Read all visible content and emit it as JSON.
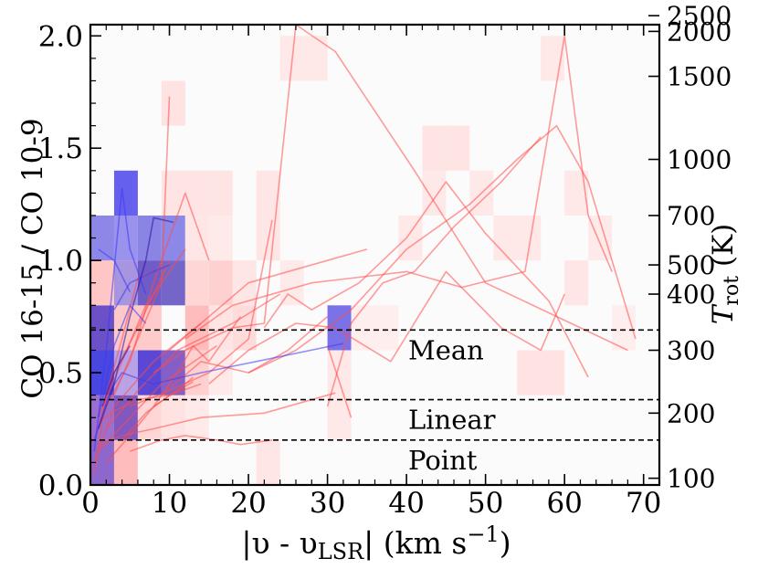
{
  "chart_data": {
    "type": "heatmap",
    "title": "",
    "xlabel": {
      "main": "|υ - υ",
      "sub": "LSR",
      "mid": "| (km s",
      "sup": "−1",
      "end": ")"
    },
    "ylabel": "CO 16-15 / CO 10-9",
    "ylabel_right": {
      "main": "T",
      "sub": "rot",
      "end": " (K)"
    },
    "xlim": [
      0,
      72
    ],
    "ylim": [
      0,
      2.05
    ],
    "x_ticks": [
      0,
      10,
      20,
      30,
      40,
      50,
      60,
      70
    ],
    "y_ticks": [
      0.0,
      0.5,
      1.0,
      1.5,
      2.0
    ],
    "y_tick_labels": [
      "0.0",
      "0.5",
      "1.0",
      "1.5",
      "2.0"
    ],
    "right_ticks": [
      {
        "label": "2500",
        "ratio": 2.09
      },
      {
        "label": "2000",
        "ratio": 2.02
      },
      {
        "label": "1500",
        "ratio": 1.82
      },
      {
        "label": "1000",
        "ratio": 1.45
      },
      {
        "label": "700",
        "ratio": 1.2
      },
      {
        "label": "500",
        "ratio": 0.98
      },
      {
        "label": "400",
        "ratio": 0.85
      },
      {
        "label": "300",
        "ratio": 0.6
      },
      {
        "label": "200",
        "ratio": 0.32
      },
      {
        "label": "100",
        "ratio": 0.03
      }
    ],
    "hlines": [
      {
        "label": "Mean",
        "y": 0.69
      },
      {
        "label": "Linear",
        "y": 0.38
      },
      {
        "label": "Point",
        "y": 0.2
      }
    ],
    "series": [
      {
        "color": "#ff4a4a",
        "lines": [
          [
            [
              0.5,
              0.2
            ],
            [
              3,
              0.5
            ],
            [
              6,
              0.7
            ],
            [
              10,
              1.0
            ]
          ],
          [
            [
              1,
              0.3
            ],
            [
              4,
              0.55
            ],
            [
              7,
              0.8
            ],
            [
              12,
              1.05
            ]
          ],
          [
            [
              0.5,
              0.1
            ],
            [
              3,
              0.35
            ],
            [
              8,
              0.55
            ],
            [
              14,
              0.72
            ]
          ],
          [
            [
              1,
              0.15
            ],
            [
              5,
              0.3
            ],
            [
              9,
              0.45
            ],
            [
              16,
              0.62
            ]
          ],
          [
            [
              2,
              0.25
            ],
            [
              6,
              0.42
            ],
            [
              11,
              0.6
            ],
            [
              18,
              0.72
            ],
            [
              24,
              0.85
            ]
          ],
          [
            [
              1,
              0.18
            ],
            [
              4,
              0.22
            ],
            [
              8,
              0.25
            ],
            [
              14,
              0.3
            ],
            [
              22,
              0.32
            ],
            [
              31,
              0.41
            ]
          ],
          [
            [
              3,
              0.4
            ],
            [
              6,
              0.65
            ],
            [
              9,
              0.9
            ],
            [
              10,
              1.73
            ]
          ],
          [
            [
              2,
              0.35
            ],
            [
              5,
              0.55
            ],
            [
              8,
              0.9
            ],
            [
              12,
              1.3
            ],
            [
              15,
              1.0
            ]
          ],
          [
            [
              5,
              0.35
            ],
            [
              10,
              0.42
            ],
            [
              15,
              0.5
            ],
            [
              20,
              0.65
            ],
            [
              23,
              1.18
            ]
          ],
          [
            [
              8,
              0.5
            ],
            [
              12,
              0.6
            ],
            [
              18,
              0.7
            ],
            [
              22,
              0.72
            ],
            [
              26,
              2.05
            ],
            [
              31,
              1.93
            ],
            [
              41,
              1.4
            ],
            [
              50,
              0.9
            ],
            [
              62,
              0.7
            ],
            [
              68,
              0.6
            ]
          ],
          [
            [
              9,
              0.4
            ],
            [
              14,
              0.55
            ],
            [
              20,
              0.5
            ],
            [
              25,
              0.6
            ],
            [
              30,
              0.75
            ]
          ],
          [
            [
              10,
              0.6
            ],
            [
              15,
              0.75
            ],
            [
              20,
              0.9
            ],
            [
              35,
              1.05
            ]
          ],
          [
            [
              12,
              0.65
            ],
            [
              18,
              0.8
            ],
            [
              28,
              0.9
            ],
            [
              40,
              0.95
            ],
            [
              47,
              0.88
            ],
            [
              55,
              0.95
            ],
            [
              60,
              2.0
            ],
            [
              63,
              1.2
            ],
            [
              66,
              0.95
            ]
          ],
          [
            [
              15,
              0.45
            ],
            [
              20,
              0.6
            ],
            [
              26,
              0.72
            ],
            [
              31,
              0.7
            ],
            [
              38,
              0.55
            ],
            [
              45,
              0.95
            ],
            [
              52,
              0.7
            ],
            [
              57,
              0.6
            ],
            [
              60,
              0.85
            ]
          ],
          [
            [
              20,
              0.5
            ],
            [
              26,
              0.6
            ],
            [
              33,
              0.78
            ],
            [
              40,
              1.05
            ],
            [
              44,
              1.15
            ],
            [
              48,
              1.25
            ],
            [
              54,
              1.45
            ],
            [
              59,
              1.6
            ],
            [
              63,
              1.35
            ],
            [
              66,
              1.0
            ],
            [
              69,
              0.65
            ]
          ],
          [
            [
              22,
              0.7
            ],
            [
              25,
              0.85
            ],
            [
              28,
              0.78
            ],
            [
              34,
              0.9
            ],
            [
              40,
              1.1
            ],
            [
              45,
              1.35
            ],
            [
              50,
              1.12
            ],
            [
              58,
              0.82
            ],
            [
              63,
              0.48
            ]
          ],
          [
            [
              30,
              0.35
            ],
            [
              33,
              0.72
            ],
            [
              37,
              0.9
            ],
            [
              41,
              0.95
            ],
            [
              46,
              1.15
            ],
            [
              52,
              1.35
            ],
            [
              57,
              1.55
            ]
          ],
          [
            [
              5,
              0.15
            ],
            [
              9,
              0.2
            ],
            [
              12,
              0.22
            ],
            [
              16,
              0.2
            ],
            [
              19,
              0.18
            ],
            [
              23,
              0.2
            ]
          ],
          [
            [
              8,
              0.35
            ],
            [
              11,
              0.5
            ],
            [
              13,
              0.62
            ],
            [
              15,
              0.55
            ],
            [
              19,
              0.75
            ]
          ],
          [
            [
              0.5,
              0.05
            ],
            [
              2,
              0.4
            ],
            [
              4,
              0.65
            ],
            [
              6,
              0.92
            ],
            [
              8,
              0.95
            ]
          ],
          [
            [
              1,
              0.28
            ],
            [
              3,
              0.33
            ],
            [
              6,
              0.38
            ],
            [
              10,
              0.4
            ],
            [
              14,
              0.45
            ]
          ],
          [
            [
              2,
              0.1
            ],
            [
              5,
              0.22
            ],
            [
              8,
              0.35
            ],
            [
              11,
              0.42
            ],
            [
              13,
              0.48
            ]
          ],
          [
            [
              4,
              0.2
            ],
            [
              7,
              0.32
            ],
            [
              10,
              0.4
            ],
            [
              13,
              0.46
            ]
          ],
          [
            [
              30,
              0.62
            ],
            [
              33,
              0.3
            ]
          ]
        ]
      },
      {
        "color": "#3a3af5",
        "lines": [
          [
            [
              0.5,
              0.15
            ],
            [
              2,
              0.6
            ],
            [
              4,
              1.32
            ],
            [
              5,
              1.05
            ],
            [
              7,
              0.85
            ]
          ],
          [
            [
              1,
              0.3
            ],
            [
              3,
              0.62
            ],
            [
              5,
              0.8
            ],
            [
              7,
              0.72
            ]
          ],
          [
            [
              0.5,
              0.2
            ],
            [
              2.5,
              0.42
            ],
            [
              4,
              0.5
            ],
            [
              8,
              0.45
            ],
            [
              14,
              0.5
            ],
            [
              21,
              0.55
            ],
            [
              32,
              0.63
            ]
          ],
          [
            [
              3,
              0.78
            ],
            [
              5,
              0.9
            ],
            [
              8,
              0.95
            ],
            [
              10,
              0.98
            ]
          ],
          [
            [
              1,
              1.05
            ],
            [
              3,
              1.0
            ],
            [
              5,
              0.86
            ]
          ]
        ]
      },
      {
        "color": "#2a10a0",
        "lines": [
          [
            [
              1,
              0.25
            ],
            [
              3,
              0.45
            ],
            [
              5,
              0.75
            ],
            [
              7,
              1.0
            ],
            [
              8,
              1.19
            ],
            [
              10.5,
              1.17
            ]
          ],
          [
            [
              1.5,
              0.35
            ],
            [
              3,
              0.5
            ],
            [
              5,
              0.62
            ]
          ]
        ]
      }
    ],
    "heatmap": {
      "x_bin": 3,
      "y_bin": 0.2,
      "cells": [
        {
          "x": 0,
          "y": 0.0,
          "color": "#8e67cc"
        },
        {
          "x": 3,
          "y": 0.0,
          "color": "#ffbcbc"
        },
        {
          "x": 0,
          "y": 0.2,
          "color": "#9a6fd0"
        },
        {
          "x": 3,
          "y": 0.2,
          "color": "#8058c0"
        },
        {
          "x": 6,
          "y": 0.2,
          "color": "#ffd6d6"
        },
        {
          "x": 9,
          "y": 0.2,
          "color": "#ffe2e2"
        },
        {
          "x": 0,
          "y": 0.4,
          "color": "#4a46e0"
        },
        {
          "x": 3,
          "y": 0.4,
          "color": "#b9a3e6"
        },
        {
          "x": 6,
          "y": 0.4,
          "color": "#5a48d4"
        },
        {
          "x": 9,
          "y": 0.4,
          "color": "#8460c6"
        },
        {
          "x": 0,
          "y": 0.6,
          "color": "#6c50c8"
        },
        {
          "x": 3,
          "y": 0.6,
          "color": "#ffc8c8"
        },
        {
          "x": 6,
          "y": 0.6,
          "color": "#ffcaca"
        },
        {
          "x": 0,
          "y": 0.8,
          "color": "#ffc6c6"
        },
        {
          "x": 3,
          "y": 0.8,
          "color": "#a795e0"
        },
        {
          "x": 6,
          "y": 0.8,
          "color": "#705cc6"
        },
        {
          "x": 9,
          "y": 0.8,
          "color": "#7466c8"
        },
        {
          "x": 0,
          "y": 1.0,
          "color": "#8d88e8"
        },
        {
          "x": 3,
          "y": 1.0,
          "color": "#9a92ec"
        },
        {
          "x": 6,
          "y": 1.0,
          "color": "#8a84e4"
        },
        {
          "x": 9,
          "y": 1.0,
          "color": "#8c88e8"
        },
        {
          "x": 3,
          "y": 1.2,
          "color": "#6660ee"
        },
        {
          "x": 9,
          "y": 1.2,
          "color": "#ffe4e4"
        },
        {
          "x": 12,
          "y": 1.2,
          "color": "#ffe4e4"
        },
        {
          "x": 15,
          "y": 1.2,
          "color": "#ffe4e4"
        },
        {
          "x": 9,
          "y": 1.6,
          "color": "#ffe2e2"
        },
        {
          "x": 12,
          "y": 0.2,
          "color": "#ffeaea"
        },
        {
          "x": 12,
          "y": 0.4,
          "color": "#ffd0d0"
        },
        {
          "x": 12,
          "y": 0.6,
          "color": "#ffbcbc"
        },
        {
          "x": 12,
          "y": 0.8,
          "color": "#ffd6d6"
        },
        {
          "x": 15,
          "y": 0.8,
          "color": "#ffd0d0"
        },
        {
          "x": 15,
          "y": 0.6,
          "color": "#ffe4e4"
        },
        {
          "x": 15,
          "y": 0.4,
          "color": "#ffeaea"
        },
        {
          "x": 12,
          "y": 1.0,
          "color": "#ffe6e6"
        },
        {
          "x": 15,
          "y": 1.0,
          "color": "#ffeaea"
        },
        {
          "x": 18,
          "y": 0.6,
          "color": "#ffdcdc"
        },
        {
          "x": 18,
          "y": 0.8,
          "color": "#ffe6e6"
        },
        {
          "x": 21,
          "y": 0.0,
          "color": "#ffe6e6"
        },
        {
          "x": 21,
          "y": 1.2,
          "color": "#ffe6e6"
        },
        {
          "x": 21,
          "y": 1.0,
          "color": "#ffe6e6"
        },
        {
          "x": 24,
          "y": 0.8,
          "color": "#ffeaea"
        },
        {
          "x": 24,
          "y": 1.8,
          "color": "#ffe8e8"
        },
        {
          "x": 27,
          "y": 1.8,
          "color": "#ffe8e8"
        },
        {
          "x": 30,
          "y": 0.6,
          "color": "#7a72e6"
        },
        {
          "x": 30,
          "y": 0.2,
          "color": "#ffe8e8"
        },
        {
          "x": 30,
          "y": 0.4,
          "color": "#ffe8e8"
        },
        {
          "x": 33,
          "y": 0.6,
          "color": "#ffeeee"
        },
        {
          "x": 36,
          "y": 0.6,
          "color": "#ffeeee"
        },
        {
          "x": 39,
          "y": 1.0,
          "color": "#ffe8e8"
        },
        {
          "x": 42,
          "y": 1.2,
          "color": "#ffe8e8"
        },
        {
          "x": 42,
          "y": 1.4,
          "color": "#ffe4e4"
        },
        {
          "x": 45,
          "y": 1.4,
          "color": "#ffe4e4"
        },
        {
          "x": 48,
          "y": 1.2,
          "color": "#ffe8e8"
        },
        {
          "x": 51,
          "y": 1.0,
          "color": "#ffe8e8"
        },
        {
          "x": 54,
          "y": 1.0,
          "color": "#ffe8e8"
        },
        {
          "x": 54,
          "y": 0.4,
          "color": "#ffe2e2"
        },
        {
          "x": 57,
          "y": 0.4,
          "color": "#ffe2e2"
        },
        {
          "x": 57,
          "y": 1.8,
          "color": "#ffe8e8"
        },
        {
          "x": 60,
          "y": 1.2,
          "color": "#ffe8e8"
        },
        {
          "x": 60,
          "y": 0.8,
          "color": "#ffe6e6"
        },
        {
          "x": 63,
          "y": 1.0,
          "color": "#ffeaea"
        },
        {
          "x": 66,
          "y": 0.6,
          "color": "#ffeeee"
        }
      ]
    }
  }
}
